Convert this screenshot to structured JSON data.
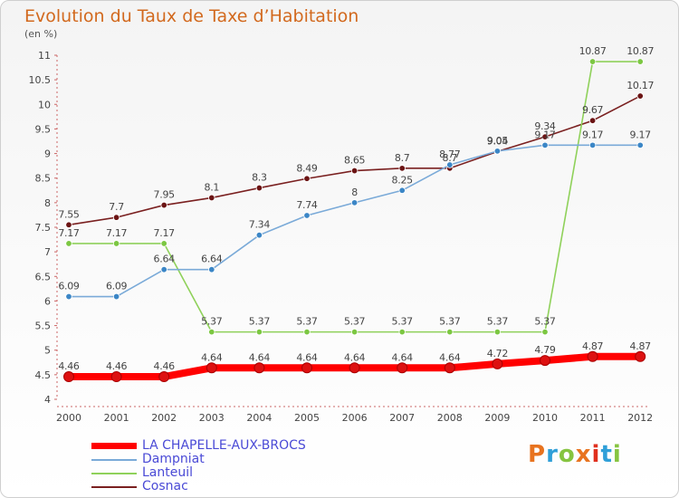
{
  "header": {
    "title": "Evolution du Taux de Taxe d’Habitation",
    "unit": "(en %)"
  },
  "brand": {
    "text": "Proxiti",
    "colors": [
      "#e8731f",
      "#2f9fd8",
      "#86c440",
      "#e8731f",
      "#e0301e",
      "#2f9fd8",
      "#86c440"
    ]
  },
  "chart_data": {
    "type": "line",
    "x": [
      "2000",
      "2001",
      "2002",
      "2003",
      "2004",
      "2005",
      "2006",
      "2007",
      "2008",
      "2009",
      "2010",
      "2011",
      "2012"
    ],
    "ylim": [
      4,
      11
    ],
    "yticks": [
      "4",
      "4.5",
      "5",
      "5.5",
      "6",
      "6.5",
      "7",
      "7.5",
      "8",
      "8.5",
      "9",
      "9.5",
      "10",
      "10.5",
      "11"
    ],
    "grid": false,
    "legend_position": "bottom-left",
    "series": [
      {
        "name": "LA CHAPELLE-AUX-BROCS",
        "color": "#ff0000",
        "marker": "#dd1111",
        "values": [
          4.46,
          4.46,
          4.46,
          4.64,
          4.64,
          4.64,
          4.64,
          4.64,
          4.64,
          4.72,
          4.79,
          4.87,
          4.87
        ],
        "labels": [
          "4.46",
          "4.46",
          "4.46",
          "4.64",
          "4.64",
          "4.64",
          "4.64",
          "4.64",
          "4.64",
          "4.72",
          "4.79",
          "4.87",
          "4.87"
        ]
      },
      {
        "name": "Dampniat",
        "color": "#7aaad8",
        "marker": "#3b86c6",
        "values": [
          6.09,
          6.09,
          6.64,
          6.64,
          7.34,
          7.74,
          8.0,
          8.25,
          8.77,
          9.05,
          9.17,
          9.17,
          9.17
        ],
        "labels": [
          "6.09",
          "6.09",
          "6.64",
          "6.64",
          "7.34",
          "7.74",
          "8",
          "8.25",
          "8.77",
          "9.05",
          "9.17",
          "9.17",
          "9.17"
        ]
      },
      {
        "name": "Lanteuil",
        "color": "#8fd15a",
        "marker": "#7cc742",
        "values": [
          7.17,
          7.17,
          7.17,
          5.37,
          5.37,
          5.37,
          5.37,
          5.37,
          5.37,
          5.37,
          5.37,
          10.87,
          10.87
        ],
        "labels": [
          "7.17",
          "7.17",
          "7.17",
          "5.37",
          "5.37",
          "5.37",
          "5.37",
          "5.37",
          "5.37",
          "5.37",
          "5.37",
          "10.87",
          "10.87"
        ]
      },
      {
        "name": "Cosnac",
        "color": "#7a2020",
        "marker": "#6b1414",
        "values": [
          7.55,
          7.7,
          7.95,
          8.1,
          8.3,
          8.49,
          8.65,
          8.7,
          8.7,
          9.04,
          9.34,
          9.67,
          10.17
        ],
        "labels": [
          "7.55",
          "7.7",
          "7.95",
          "8.1",
          "8.3",
          "8.49",
          "8.65",
          "8.7",
          "8.7",
          "9.04",
          "9.34",
          "9.67",
          "10.17"
        ]
      }
    ]
  }
}
